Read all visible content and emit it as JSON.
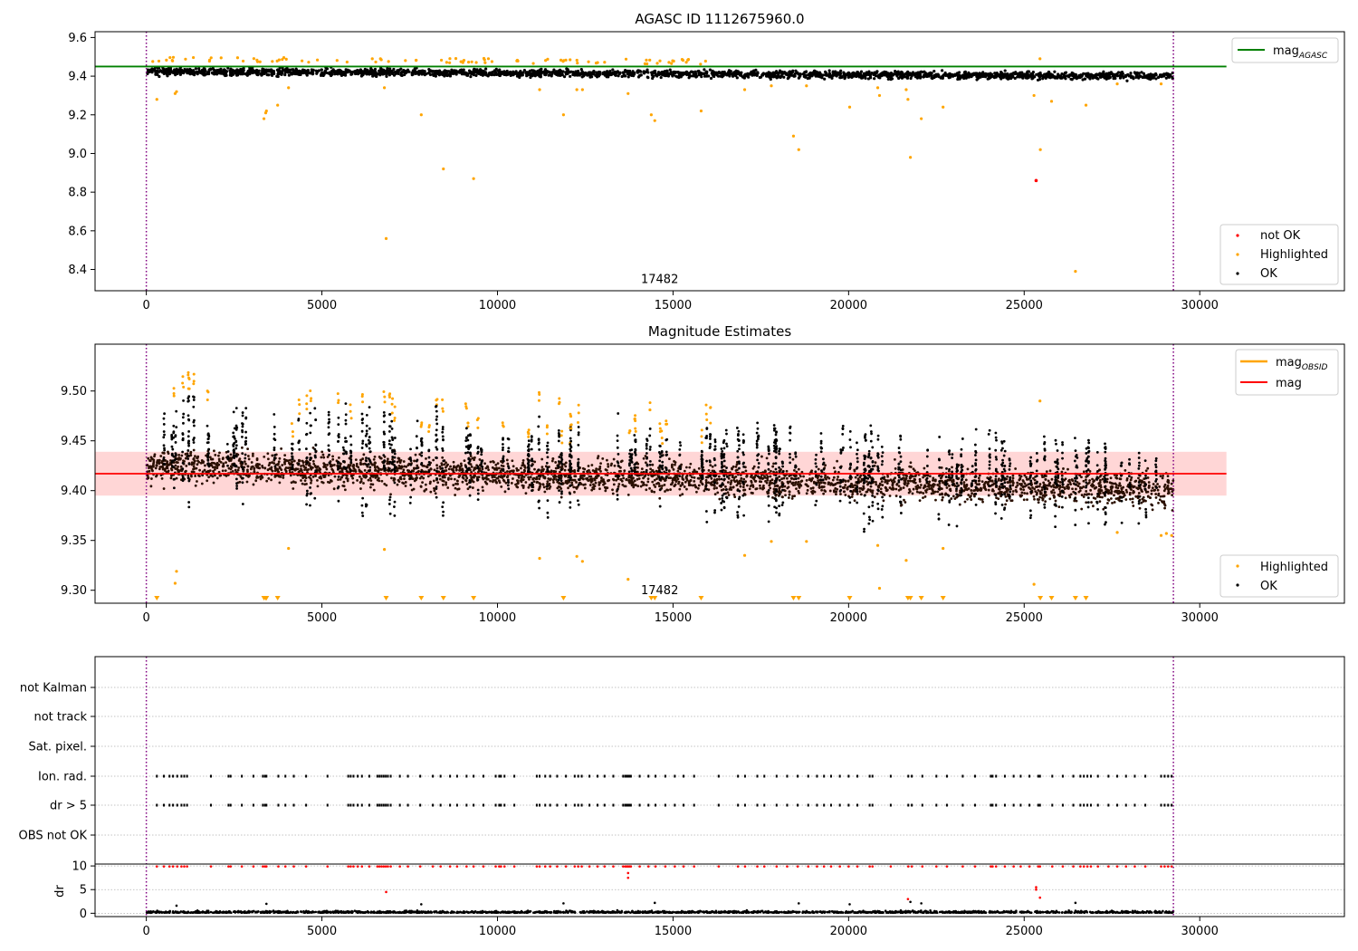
{
  "chart_data": [
    {
      "type": "scatter",
      "title": "AGASC ID 1112675960.0",
      "xlim": [
        -1460,
        34120
      ],
      "ylim": [
        8.29,
        9.63
      ],
      "xticks": [
        "0",
        "5000",
        "10000",
        "15000",
        "20000",
        "25000",
        "30000"
      ],
      "xtick_values": [
        0,
        5000,
        10000,
        15000,
        20000,
        25000,
        30000
      ],
      "yticks": [
        "8.4",
        "8.6",
        "8.8",
        "9.0",
        "9.2",
        "9.4",
        "9.6"
      ],
      "ytick_values": [
        8.4,
        8.6,
        8.8,
        9.0,
        9.2,
        9.4,
        9.6
      ],
      "obs_lines": [
        0,
        29250
      ],
      "obs_label": {
        "text": "17482",
        "x": 14620,
        "y": 8.33
      },
      "hline": {
        "name": "mag_AGASC",
        "y": 9.45,
        "x_range": [
          -1460,
          30760
        ],
        "color": "#008000"
      },
      "ok_band": {
        "start": 0,
        "end": 29250,
        "center_start": 9.425,
        "center_end": 9.4,
        "halfwidth": 0.04
      },
      "highlighted": [
        [
          300,
          9.28
        ],
        [
          820,
          9.31
        ],
        [
          860,
          9.32
        ],
        [
          3350,
          9.18
        ],
        [
          3400,
          9.21
        ],
        [
          3420,
          9.22
        ],
        [
          3740,
          9.25
        ],
        [
          4050,
          9.34
        ],
        [
          6780,
          9.34
        ],
        [
          6830,
          8.56
        ],
        [
          7830,
          9.2
        ],
        [
          8460,
          8.92
        ],
        [
          9320,
          8.87
        ],
        [
          11200,
          9.33
        ],
        [
          11880,
          9.2
        ],
        [
          12260,
          9.33
        ],
        [
          12420,
          9.33
        ],
        [
          13720,
          9.31
        ],
        [
          14380,
          9.2
        ],
        [
          14480,
          9.17
        ],
        [
          15800,
          9.22
        ],
        [
          17040,
          9.33
        ],
        [
          17800,
          9.35
        ],
        [
          18430,
          9.09
        ],
        [
          18580,
          9.02
        ],
        [
          18800,
          9.35
        ],
        [
          20030,
          9.24
        ],
        [
          20830,
          9.34
        ],
        [
          20880,
          9.3
        ],
        [
          21640,
          9.33
        ],
        [
          21690,
          9.28
        ],
        [
          21760,
          8.98
        ],
        [
          22070,
          9.18
        ],
        [
          22690,
          9.24
        ],
        [
          25280,
          9.3
        ],
        [
          25450,
          9.49
        ],
        [
          25460,
          9.02
        ],
        [
          25780,
          9.27
        ],
        [
          26460,
          8.39
        ],
        [
          26760,
          9.25
        ],
        [
          27650,
          9.36
        ],
        [
          28900,
          9.36
        ]
      ],
      "not_ok": [
        [
          25340,
          8.86
        ]
      ],
      "legend_upper": [
        "mag_AGASC"
      ],
      "legend_lower": [
        "not OK",
        "Highlighted",
        "OK"
      ]
    },
    {
      "type": "scatter",
      "title": "Magnitude Estimates",
      "xlim": [
        -1460,
        34120
      ],
      "ylim": [
        9.287,
        9.547
      ],
      "xticks": [
        "0",
        "5000",
        "10000",
        "15000",
        "20000",
        "25000",
        "30000"
      ],
      "xtick_values": [
        0,
        5000,
        10000,
        15000,
        20000,
        25000,
        30000
      ],
      "yticks": [
        "9.30",
        "9.35",
        "9.40",
        "9.45",
        "9.50"
      ],
      "ytick_values": [
        9.3,
        9.35,
        9.4,
        9.45,
        9.5
      ],
      "obs_lines": [
        0,
        29250
      ],
      "obs_label": {
        "text": "17482",
        "x": 14620,
        "y": 9.296
      },
      "mag": {
        "name": "mag",
        "y": 9.417,
        "x_range": [
          -1460,
          30760
        ],
        "band": [
          9.395,
          9.439
        ],
        "color": "#ff0000"
      },
      "ok_band": {
        "start": 0,
        "end": 29250,
        "center_start": 9.425,
        "center_end": 9.4,
        "halfwidth": 0.015
      },
      "highlighted": [
        [
          820,
          9.307
        ],
        [
          860,
          9.319
        ],
        [
          4050,
          9.342
        ],
        [
          6780,
          9.341
        ],
        [
          11200,
          9.332
        ],
        [
          12260,
          9.334
        ],
        [
          12420,
          9.329
        ],
        [
          13720,
          9.311
        ],
        [
          17040,
          9.335
        ],
        [
          17800,
          9.349
        ],
        [
          18800,
          9.349
        ],
        [
          20830,
          9.345
        ],
        [
          20880,
          9.302
        ],
        [
          21640,
          9.33
        ],
        [
          22690,
          9.342
        ],
        [
          25280,
          9.306
        ],
        [
          25450,
          9.49
        ],
        [
          27650,
          9.358
        ],
        [
          28900,
          9.355
        ],
        [
          29050,
          9.357
        ],
        [
          29200,
          9.355
        ]
      ],
      "lower_markers": [
        300,
        3350,
        3400,
        3420,
        3740,
        6830,
        7830,
        8460,
        9320,
        11880,
        14380,
        14480,
        15800,
        18430,
        18580,
        20030,
        21690,
        21760,
        22070,
        22690,
        25460,
        25780,
        26460,
        26760
      ],
      "legend_upper": [
        "mag_OBSID",
        "mag"
      ],
      "legend_lower": [
        "Highlighted",
        "OK"
      ]
    },
    {
      "type": "scatter",
      "title": "",
      "xlim": [
        -1460,
        34120
      ],
      "xticks": [
        "0",
        "5000",
        "10000",
        "15000",
        "20000",
        "25000",
        "30000"
      ],
      "xtick_values": [
        0,
        5000,
        10000,
        15000,
        20000,
        25000,
        30000
      ],
      "obs_lines": [
        0,
        29250
      ],
      "flag_rows": [
        "not Kalman",
        "not track",
        "Sat. pixel.",
        "Ion. rad.",
        "dr > 5",
        "OBS not OK"
      ],
      "flag_ticks_x": [
        300,
        500,
        660,
        760,
        880,
        1000,
        1080,
        1160,
        1840,
        2340,
        2400,
        2720,
        3050,
        3320,
        3380,
        3420,
        3760,
        3960,
        4200,
        4550,
        5160,
        5750,
        5820,
        5900,
        6020,
        6140,
        6350,
        6580,
        6640,
        6700,
        6760,
        6820,
        6880,
        6960,
        7220,
        7450,
        7800,
        8160,
        8380,
        8650,
        8850,
        9120,
        9320,
        9600,
        9950,
        10050,
        10100,
        10200,
        10480,
        11120,
        11200,
        11360,
        11500,
        11700,
        11950,
        12200,
        12300,
        12400,
        12620,
        12850,
        13050,
        13300,
        13580,
        13640,
        13680,
        13720,
        13760,
        13800,
        14050,
        14300,
        14500,
        14780,
        15050,
        15300,
        15600,
        16300,
        16850,
        17050,
        17400,
        17600,
        17950,
        18250,
        18550,
        18850,
        19100,
        19300,
        19500,
        19750,
        20000,
        20250,
        20600,
        20680,
        21200,
        21700,
        21800,
        22100,
        22500,
        22800,
        23250,
        23600,
        24050,
        24100,
        24200,
        24450,
        24700,
        24900,
        25150,
        25400,
        25450,
        25800,
        26100,
        26400,
        26600,
        26700,
        26800,
        26900,
        27100,
        27400,
        27650,
        27900,
        28150,
        28450,
        28900,
        29000,
        29100,
        29200
      ],
      "dr_ylabel": "dr",
      "dr_yticks": [
        "0",
        "5",
        "10"
      ],
      "dr_ytick_values": [
        0,
        5,
        10
      ],
      "dr_ylim": [
        -0.7,
        10.4
      ],
      "dr_red": [
        [
          6830,
          4.5
        ],
        [
          13720,
          8.5
        ],
        [
          13720,
          7.5
        ],
        [
          21690,
          3.0
        ],
        [
          25340,
          5.5
        ],
        [
          25340,
          5.0
        ],
        [
          25450,
          3.3
        ]
      ],
      "dr_black": [
        [
          860,
          1.6
        ],
        [
          3420,
          2.0
        ],
        [
          7830,
          1.9
        ],
        [
          11880,
          2.1
        ],
        [
          14480,
          2.2
        ],
        [
          18580,
          2.1
        ],
        [
          20030,
          1.9
        ],
        [
          21760,
          2.4
        ],
        [
          22070,
          2.1
        ],
        [
          26460,
          2.2
        ]
      ]
    }
  ],
  "colors": {
    "ok": "#000000",
    "highlighted": "#ffa500",
    "not_ok": "#ff0000",
    "agasc_line": "#008000",
    "obs_line": "#800080",
    "mag_band": "#ffd6d6"
  }
}
